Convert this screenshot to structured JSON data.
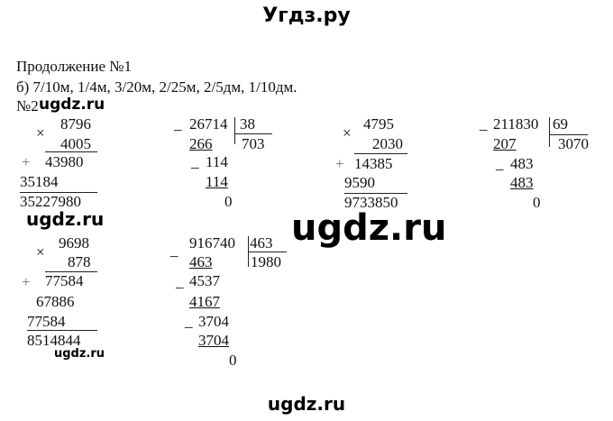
{
  "header": {
    "title": "Угдз.ру"
  },
  "intro": {
    "line1": "Продолжение №1",
    "line2": "б) 7/10м, 1/4м, 3/20м, 2/25м, 2/5дм, 1/10дм.",
    "task2": "№2"
  },
  "watermarks": {
    "small1": "ugdz.ru",
    "big": "ugdz.ru",
    "small2": "ugdz.ru",
    "bottom": "ugdz.ru"
  },
  "signs": {
    "times": "×",
    "plus": "+",
    "minus": "_"
  },
  "mult1": {
    "a": "8796",
    "b": "4005",
    "p1": "43980",
    "p2": "35184",
    "result": "35227980"
  },
  "div1": {
    "dividend": "26714",
    "divisor": "38",
    "quotient": "703",
    "s1": "266",
    "r1": "114",
    "s2": "114",
    "rem": "0"
  },
  "mult2": {
    "a": "4795",
    "b": "2030",
    "p1": "14385",
    "p2": "9590",
    "result": "9733850"
  },
  "div2": {
    "dividend": "211830",
    "divisor": "69",
    "quotient": "3070",
    "s1": "207",
    "r1": "483",
    "s2": "483",
    "rem": "0"
  },
  "mult3": {
    "a": "9698",
    "b": "878",
    "p1": "77584",
    "p2": "67886",
    "p3": "77584",
    "result": "8514844"
  },
  "div3": {
    "dividend": "916740",
    "divisor": "463",
    "quotient": "1980",
    "s1": "463",
    "r1": "4537",
    "s2": "4167",
    "r2": "3704",
    "s3": "3704",
    "rem": "0"
  }
}
